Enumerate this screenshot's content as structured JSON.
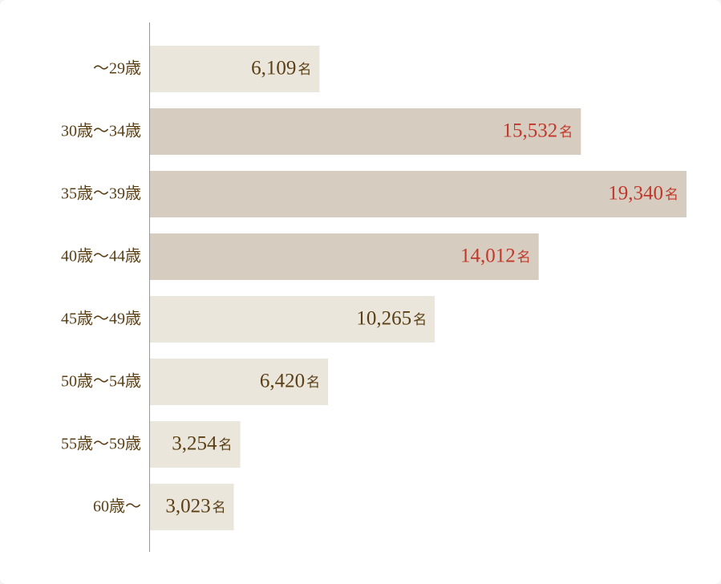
{
  "chart_data": {
    "type": "bar",
    "orientation": "horizontal",
    "categories": [
      "〜29歳",
      "30歳〜34歳",
      "35歳〜39歳",
      "40歳〜44歳",
      "45歳〜49歳",
      "50歳〜54歳",
      "55歳〜59歳",
      "60歳〜"
    ],
    "values": [
      6109,
      15532,
      19340,
      14012,
      10265,
      6420,
      3254,
      3023
    ],
    "value_labels": [
      "6,109",
      "15,532",
      "19,340",
      "14,012",
      "10,265",
      "6,420",
      "3,254",
      "3,023"
    ],
    "unit": "名",
    "colors": [
      "#ebe6dc",
      "#d6ccbf",
      "#d6ccbf",
      "#d6ccbf",
      "#ebe6dc",
      "#ebe6dc",
      "#ebe6dc",
      "#ebe6dc"
    ],
    "label_colors": [
      "#5a3f14",
      "#c0392b",
      "#c0392b",
      "#c0392b",
      "#5a3f14",
      "#5a3f14",
      "#5a3f14",
      "#5a3f14"
    ],
    "xlim": [
      0,
      19340
    ]
  }
}
